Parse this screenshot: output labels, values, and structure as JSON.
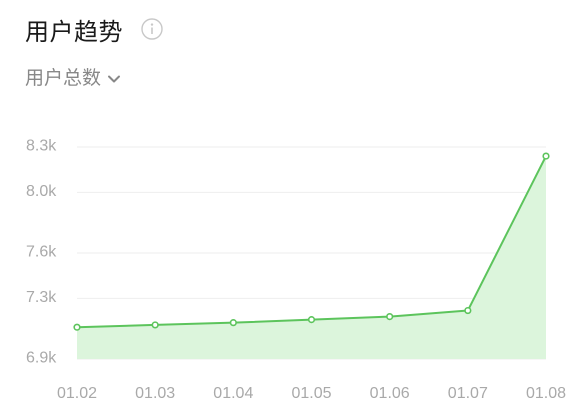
{
  "header": {
    "title": "用户趋势",
    "info_icon": "info-circle-icon"
  },
  "metric_selector": {
    "label": "用户总数",
    "icon": "chevron-down-icon"
  },
  "colors": {
    "line": "#5cc45c",
    "area": "#dcf5dc",
    "grid": "#eeeeee",
    "tick_text": "#a9a9a9"
  },
  "chart_data": {
    "type": "area",
    "categories": [
      "01.02",
      "01.03",
      "01.04",
      "01.05",
      "01.06",
      "01.07",
      "01.08"
    ],
    "values": [
      7110,
      7125,
      7140,
      7160,
      7180,
      7220,
      8240
    ],
    "y_ticks": [
      {
        "value": 6900,
        "label": "6.9k"
      },
      {
        "value": 7300,
        "label": "7.3k"
      },
      {
        "value": 7600,
        "label": "7.6k"
      },
      {
        "value": 8000,
        "label": "8.0k"
      },
      {
        "value": 8300,
        "label": "8.3k"
      }
    ],
    "ylim": [
      6900,
      8300
    ],
    "grid": true,
    "markers": true
  }
}
